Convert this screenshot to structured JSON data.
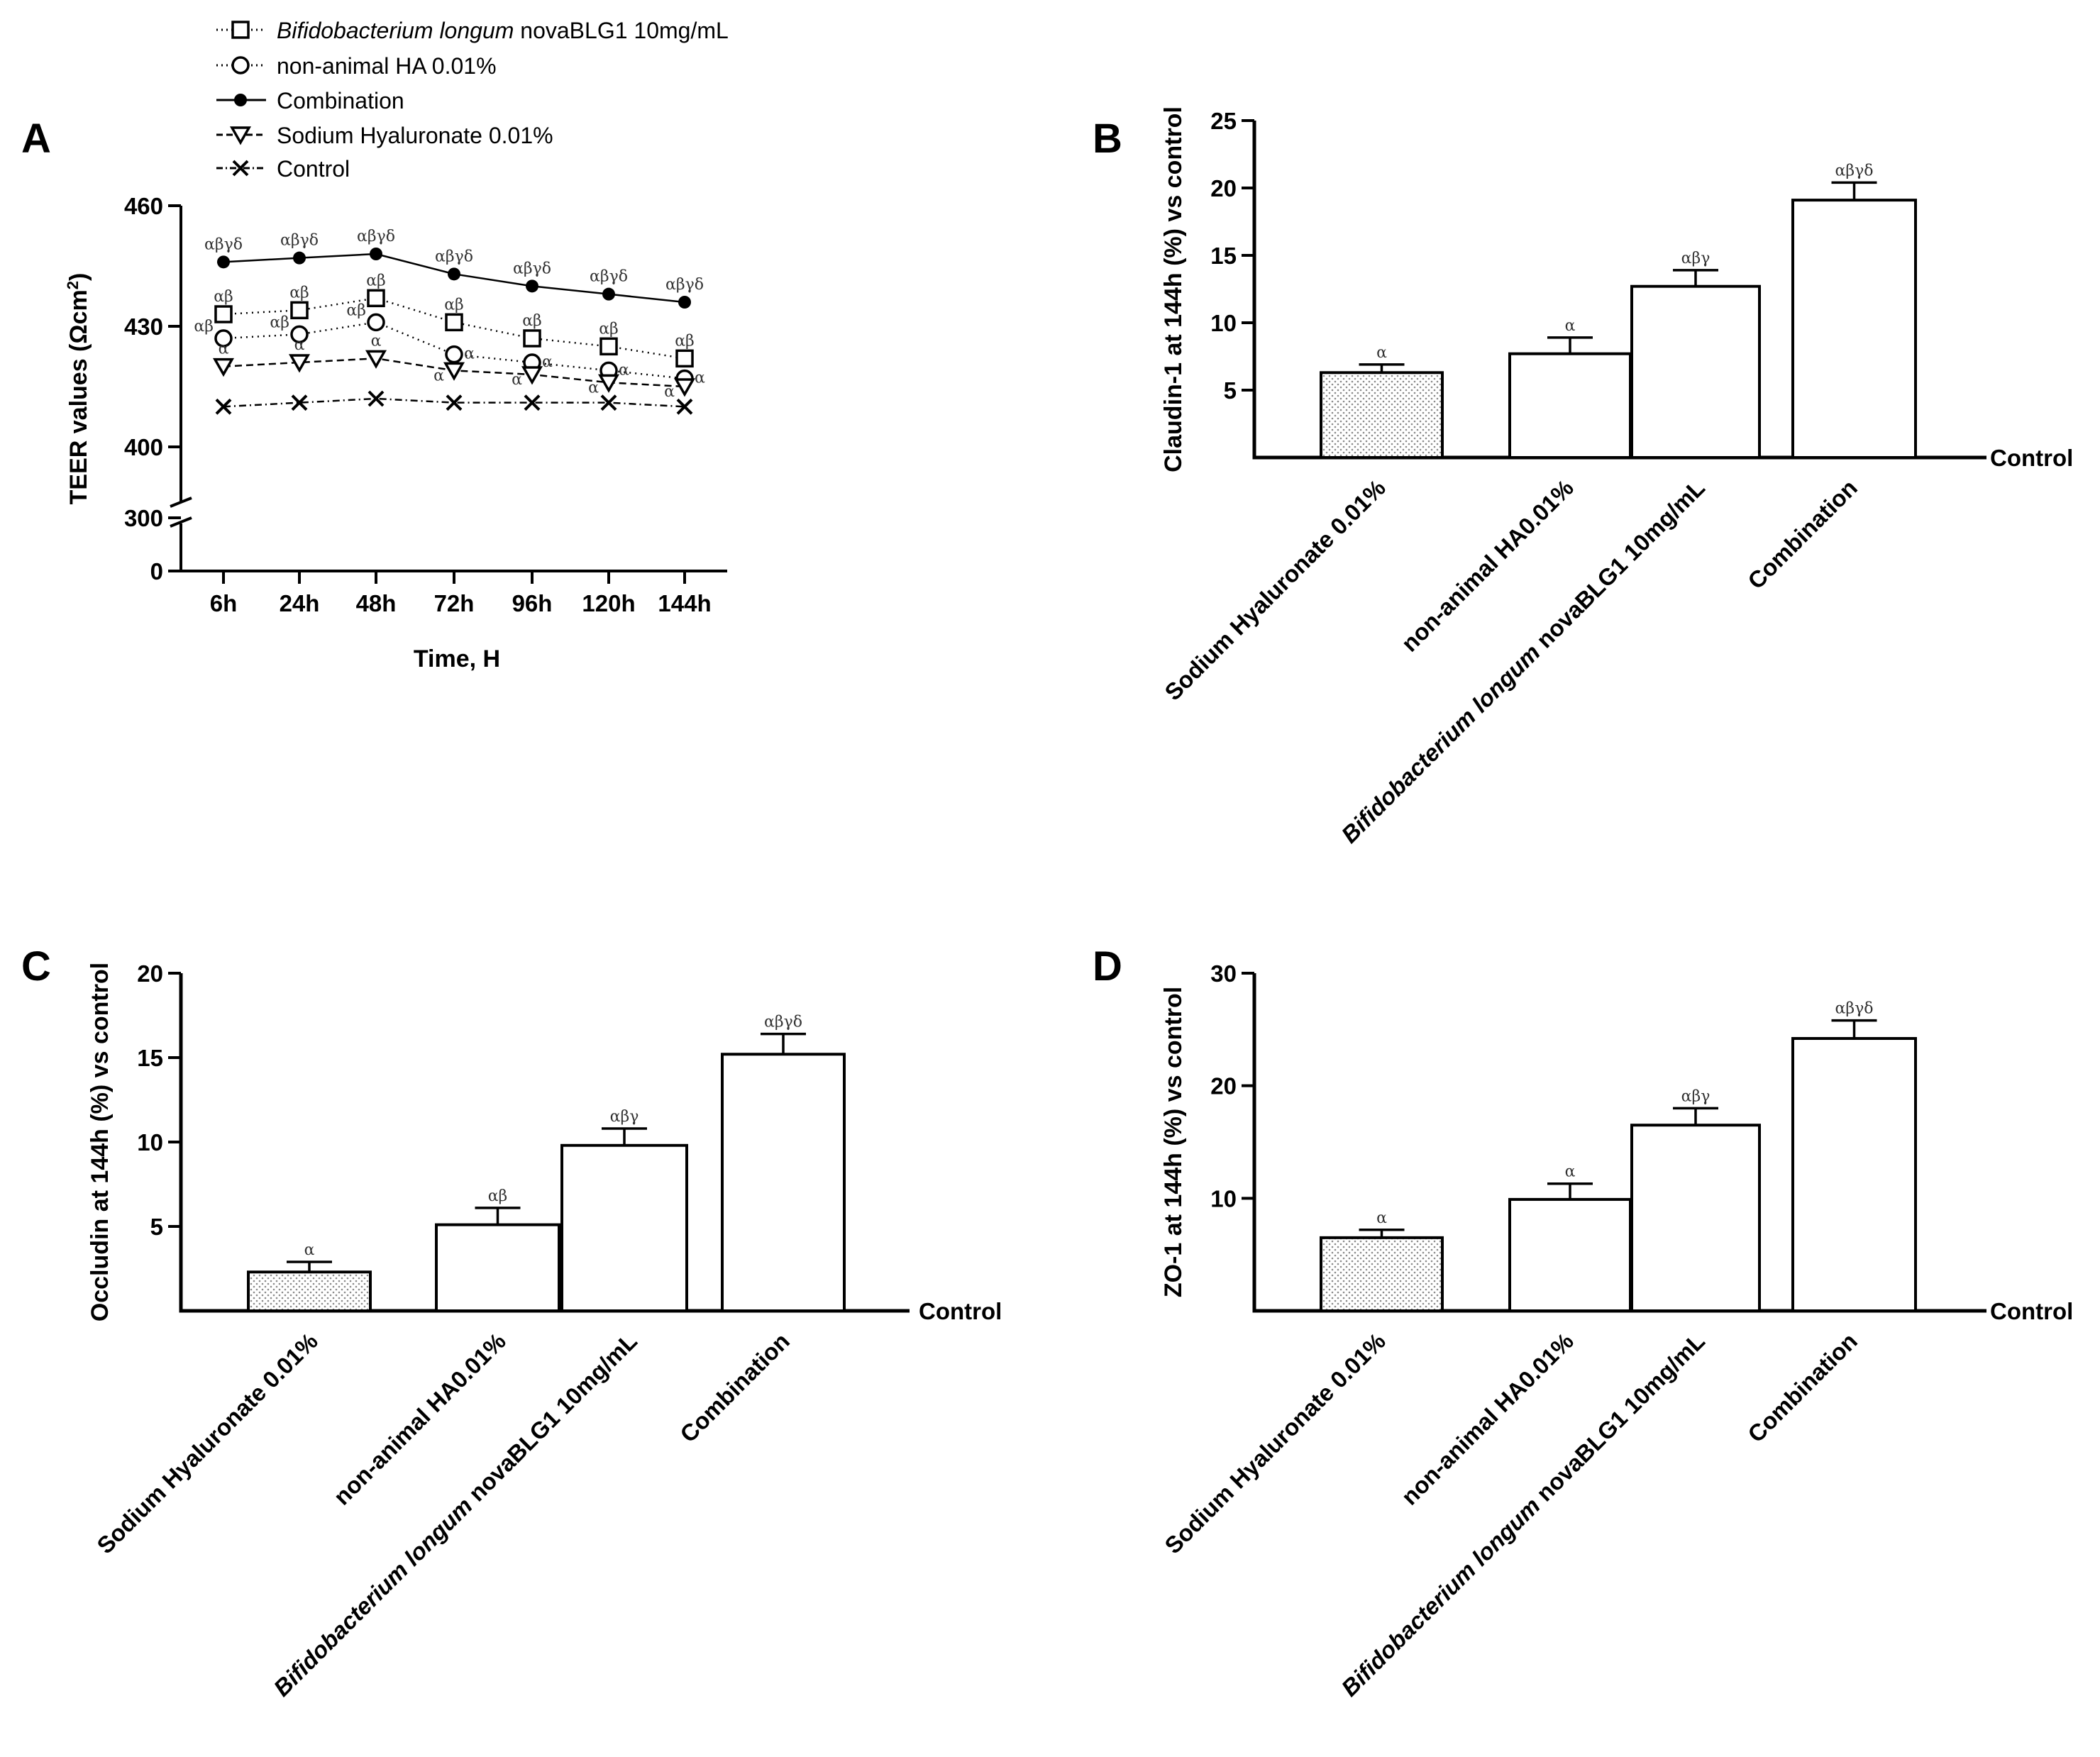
{
  "chart_data": [
    {
      "panel": "A",
      "type": "line",
      "xlabel": "Time, H",
      "ylabel": "TEER values (Ωcm²)",
      "categories": [
        "6h",
        "24h",
        "48h",
        "72h",
        "96h",
        "120h",
        "144h"
      ],
      "ylim": [
        0,
        460
      ],
      "y_break": [
        300,
        400
      ],
      "yticks": [
        "0",
        "300",
        "400",
        "430",
        "460"
      ],
      "series": [
        {
          "name": "Bifidobacterium longum novaBLG1 10mg/mL",
          "name_italic": "Bifidobacterium longum",
          "name_rest": " novaBLG1 10mg/mL",
          "marker": "square",
          "dash": "dot",
          "values": [
            433,
            434,
            437,
            431,
            427,
            425,
            422
          ],
          "sig": [
            "αβ",
            "αβ",
            "αβ",
            "αβ",
            "αβ",
            "αβ",
            "αβ"
          ]
        },
        {
          "name": "non-animal HA 0.01%",
          "marker": "circle",
          "dash": "dot",
          "values": [
            427,
            428,
            431,
            423,
            421,
            419,
            417
          ],
          "sig": [
            "αβ",
            "αβ",
            "αβ",
            "α",
            "α",
            "α",
            "α"
          ]
        },
        {
          "name": "Combination",
          "marker": "dot",
          "dash": "solid",
          "values": [
            446,
            447,
            448,
            443,
            440,
            438,
            436
          ],
          "sig": [
            "αβγδ",
            "αβγδ",
            "αβγδ",
            "αβγδ",
            "αβγδ",
            "αβγδ",
            "αβγδ"
          ]
        },
        {
          "name": "Sodium Hyaluronate 0.01%",
          "marker": "triangle-down",
          "dash": "dash",
          "values": [
            420,
            421,
            422,
            419,
            418,
            416,
            415
          ],
          "sig": [
            "α",
            "α",
            "α",
            "α",
            "α",
            "α",
            "α"
          ]
        },
        {
          "name": "Control",
          "marker": "x",
          "dash": "dashdot",
          "values": [
            410,
            411,
            412,
            411,
            411,
            411,
            410
          ],
          "sig": [
            "",
            "",
            "",
            "",
            "",
            "",
            ""
          ]
        }
      ]
    },
    {
      "panel": "B",
      "type": "bar",
      "ylabel": "Claudin-1 at 144h (%) vs control",
      "baseline_label": "Control",
      "ylim": [
        0,
        25
      ],
      "yticks": [
        5,
        10,
        15,
        20,
        25
      ],
      "categories": [
        "Sodium Hyaluronate 0.01%",
        "non-animal HA0.01%",
        "Bifidobacterium longum novaBLG1 10mg/mL",
        "Combination"
      ],
      "values": [
        6.3,
        7.7,
        12.7,
        19.1
      ],
      "errors": [
        0.6,
        1.2,
        1.2,
        1.3
      ],
      "sig": [
        "α",
        "α",
        "αβγ",
        "αβγδ"
      ]
    },
    {
      "panel": "C",
      "type": "bar",
      "ylabel": "Occludin at 144h (%) vs control",
      "baseline_label": "Control",
      "ylim": [
        0,
        20
      ],
      "yticks": [
        5,
        10,
        15,
        20
      ],
      "categories": [
        "Sodium Hyaluronate 0.01%",
        "non-animal HA0.01%",
        "Bifidobacterium longum novaBLG1 10mg/mL",
        "Combination"
      ],
      "values": [
        2.3,
        5.1,
        9.8,
        15.2
      ],
      "errors": [
        0.6,
        1.0,
        1.0,
        1.2
      ],
      "sig": [
        "α",
        "αβ",
        "αβγ",
        "αβγδ"
      ]
    },
    {
      "panel": "D",
      "type": "bar",
      "ylabel": "ZO-1 at 144h (%) vs control",
      "baseline_label": "Control",
      "ylim": [
        0,
        30
      ],
      "yticks": [
        10,
        20,
        30
      ],
      "categories": [
        "Sodium Hyaluronate 0.01%",
        "non-animal HA0.01%",
        "Bifidobacterium longum novaBLG1 10mg/mL",
        "Combination"
      ],
      "values": [
        6.5,
        9.9,
        16.5,
        24.2
      ],
      "errors": [
        0.7,
        1.4,
        1.5,
        1.6
      ],
      "sig": [
        "α",
        "α",
        "αβγ",
        "αβγδ"
      ]
    }
  ],
  "panels": {
    "a": "A",
    "b": "B",
    "c": "C",
    "d": "D"
  },
  "category_labels": {
    "sodium": "Sodium Hyaluronate 0.01%",
    "nonanimal": "non-animal HA0.01%",
    "bifido_italic": "Bifidobacterium longum",
    "bifido_rest": " novaBLG1 10mg/mL",
    "combination": "Combination"
  },
  "colors": {
    "axis": "#000000",
    "bar_fill": "#ffffff",
    "dotted_fill": "#999999",
    "sig_text": "#333333"
  }
}
